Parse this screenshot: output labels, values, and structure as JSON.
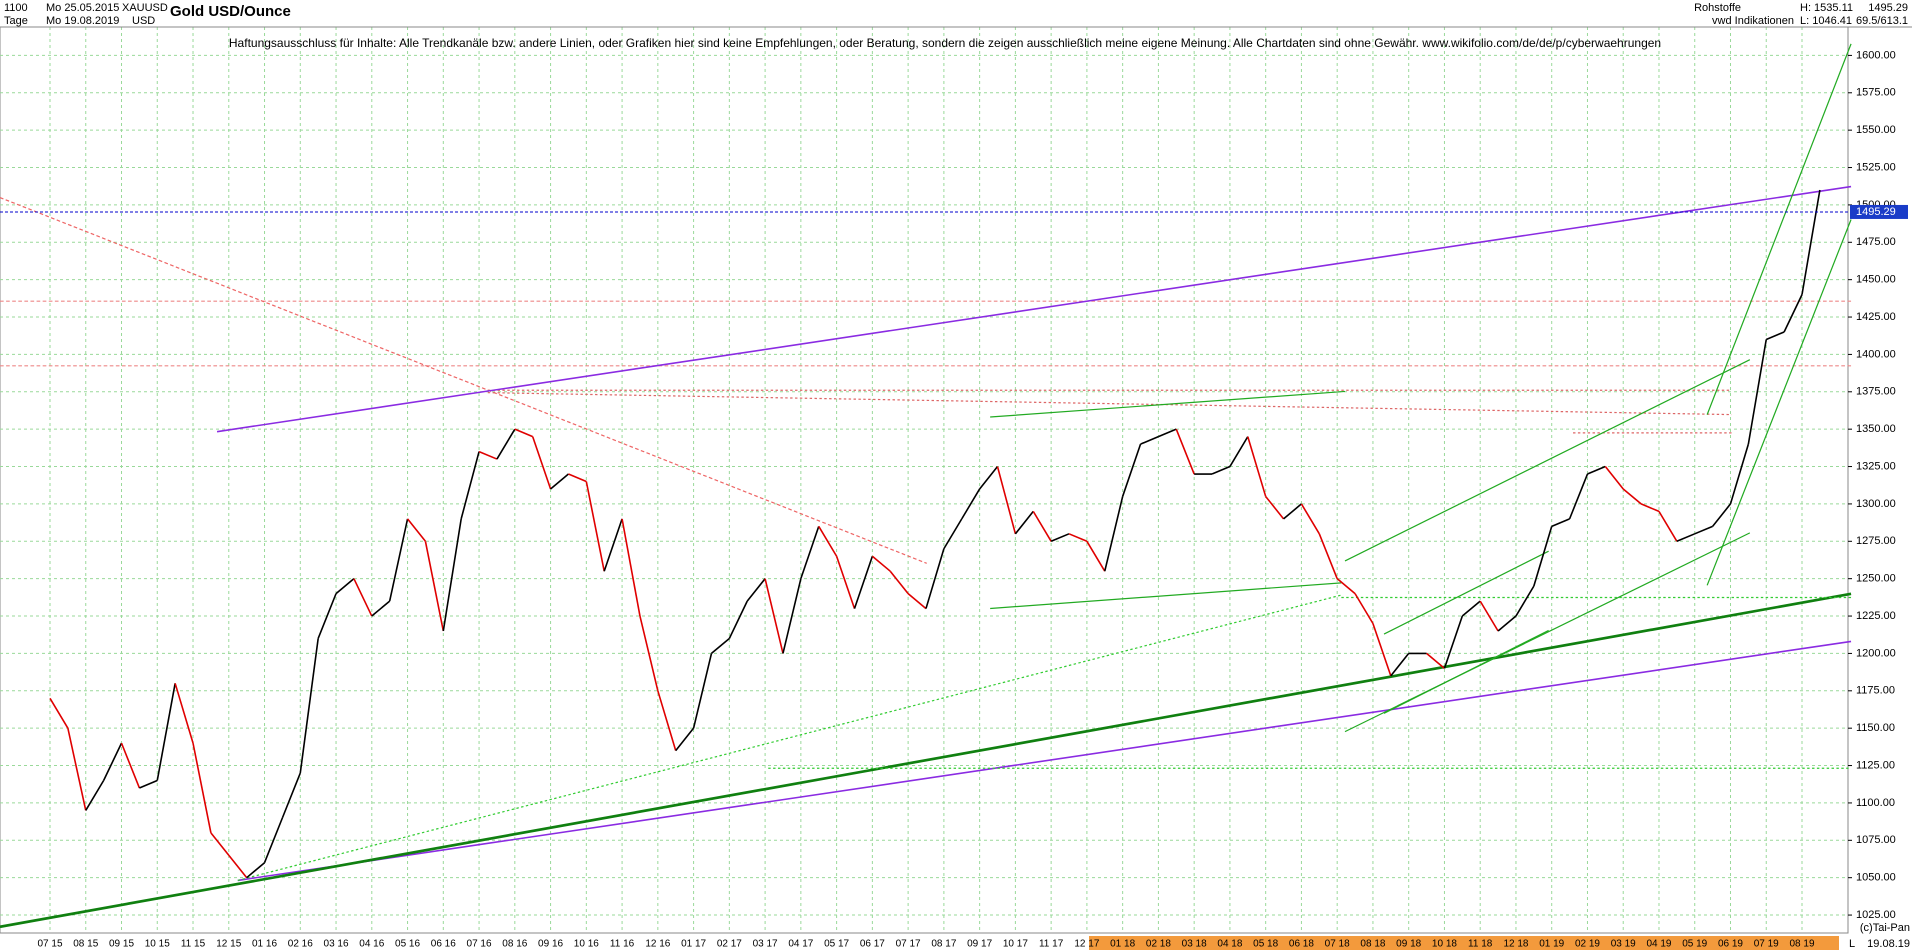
{
  "header": {
    "id": "1100",
    "start": "Mo 25.05.2015",
    "symbol": "XAUUSD",
    "period": "Tage",
    "end": "Mo 19.08.2019",
    "currency": "USD",
    "group": "Rohstoffe",
    "source": "vwd Indikationen",
    "last": "1495.29",
    "high": "H: 1535.11",
    "low": "L: 1046.41",
    "extra": "69.5/613.1",
    "disclaimer": "Haftungsausschluss für Inhalte: Alle Trendkanäle bzw. andere Linien, oder Grafiken hier sind keine Empfehlungen, oder Beratung, sondern die zeigen ausschließlich meine eigene Meinung. Alle Chartdaten sind ohne Gewähr.  www.wikifolio.com/de/de/p/cyberwaehrungen",
    "copyright": "(c)Tai-Pan",
    "end_marker": "L",
    "end_date": "19.08.19"
  },
  "chart_data": {
    "type": "line",
    "title": "Gold USD/Ounce",
    "categories": [
      "07 15",
      null,
      "08 15",
      null,
      "09 15",
      null,
      "10 15",
      null,
      "11 15",
      null,
      "12 15",
      null,
      "01 16",
      null,
      "02 16",
      null,
      "03 16",
      null,
      "04 16",
      null,
      "05 16",
      null,
      "06 16",
      null,
      "07 16",
      null,
      "08 16",
      null,
      "09 16",
      null,
      "10 16",
      null,
      "11 16",
      null,
      "12 16",
      null,
      "01 17",
      null,
      "02 17",
      null,
      "03 17",
      null,
      "04 17",
      null,
      "05 17",
      null,
      "06 17",
      null,
      "07 17",
      null,
      "08 17",
      null,
      "09 17",
      null,
      "10 17",
      null,
      "11 17",
      null,
      "12 17",
      null,
      "01 18",
      null,
      "02 18",
      null,
      "03 18",
      null,
      "04 18",
      null,
      "05 18",
      null,
      "06 18",
      null,
      "07 18",
      null,
      "08 18",
      null,
      "09 18",
      null,
      "10 18",
      null,
      "11 18",
      null,
      "12 18",
      null,
      "01 19",
      null,
      "02 19",
      null,
      "03 19",
      null,
      "04 19",
      null,
      "05 19",
      null,
      "06 19",
      null,
      "07 19",
      null,
      "08 19",
      null
    ],
    "series": [
      {
        "name": "XAUUSD",
        "color_up": "#000000",
        "color_down": "#e00000",
        "values": [
          1170,
          1150,
          1095,
          1115,
          1140,
          1110,
          1115,
          1180,
          1140,
          1080,
          1065,
          1050,
          1060,
          1090,
          1120,
          1210,
          1240,
          1250,
          1225,
          1235,
          1290,
          1275,
          1215,
          1290,
          1335,
          1330,
          1350,
          1345,
          1310,
          1320,
          1315,
          1255,
          1290,
          1225,
          1175,
          1135,
          1150,
          1200,
          1210,
          1235,
          1250,
          1200,
          1250,
          1285,
          1265,
          1230,
          1265,
          1255,
          1240,
          1230,
          1270,
          1290,
          1310,
          1325,
          1280,
          1295,
          1275,
          1280,
          1275,
          1255,
          1305,
          1340,
          1345,
          1350,
          1320,
          1320,
          1325,
          1345,
          1305,
          1290,
          1300,
          1280,
          1250,
          1240,
          1220,
          1185,
          1200,
          1200,
          1190,
          1225,
          1235,
          1215,
          1225,
          1245,
          1285,
          1290,
          1320,
          1325,
          1310,
          1300,
          1295,
          1275,
          1280,
          1285,
          1300,
          1340,
          1410,
          1415,
          1440,
          1510
        ]
      }
    ],
    "last_value": {
      "value": 1495.29,
      "label": "1495.29"
    },
    "ylim": [
      1013,
      1619
    ],
    "yticks": [
      {
        "value": 1025,
        "label": "1025.00"
      },
      {
        "value": 1050,
        "label": "1050.00"
      },
      {
        "value": 1075,
        "label": "1075.00"
      },
      {
        "value": 1100,
        "label": "1100.00"
      },
      {
        "value": 1125,
        "label": "1125.00"
      },
      {
        "value": 1150,
        "label": "1150.00"
      },
      {
        "value": 1175,
        "label": "1175.00"
      },
      {
        "value": 1200,
        "label": "1200.00"
      },
      {
        "value": 1225,
        "label": "1225.00"
      },
      {
        "value": 1250,
        "label": "1250.00"
      },
      {
        "value": 1275,
        "label": "1275.00"
      },
      {
        "value": 1300,
        "label": "1300.00"
      },
      {
        "value": 1325,
        "label": "1325.00"
      },
      {
        "value": 1350,
        "label": "1350.00"
      },
      {
        "value": 1375,
        "label": "1375.00"
      },
      {
        "value": 1400,
        "label": "1400.00"
      },
      {
        "value": 1425,
        "label": "1425.00"
      },
      {
        "value": 1450,
        "label": "1450.00"
      },
      {
        "value": 1475,
        "label": "1475.00"
      },
      {
        "value": 1500,
        "label": "1500.00"
      },
      {
        "value": 1525,
        "label": "1525.00"
      },
      {
        "value": 1550,
        "label": "1550.00"
      },
      {
        "value": 1575,
        "label": "1575.00"
      },
      {
        "value": 1600,
        "label": "1600.00"
      }
    ],
    "grid": true
  }
}
